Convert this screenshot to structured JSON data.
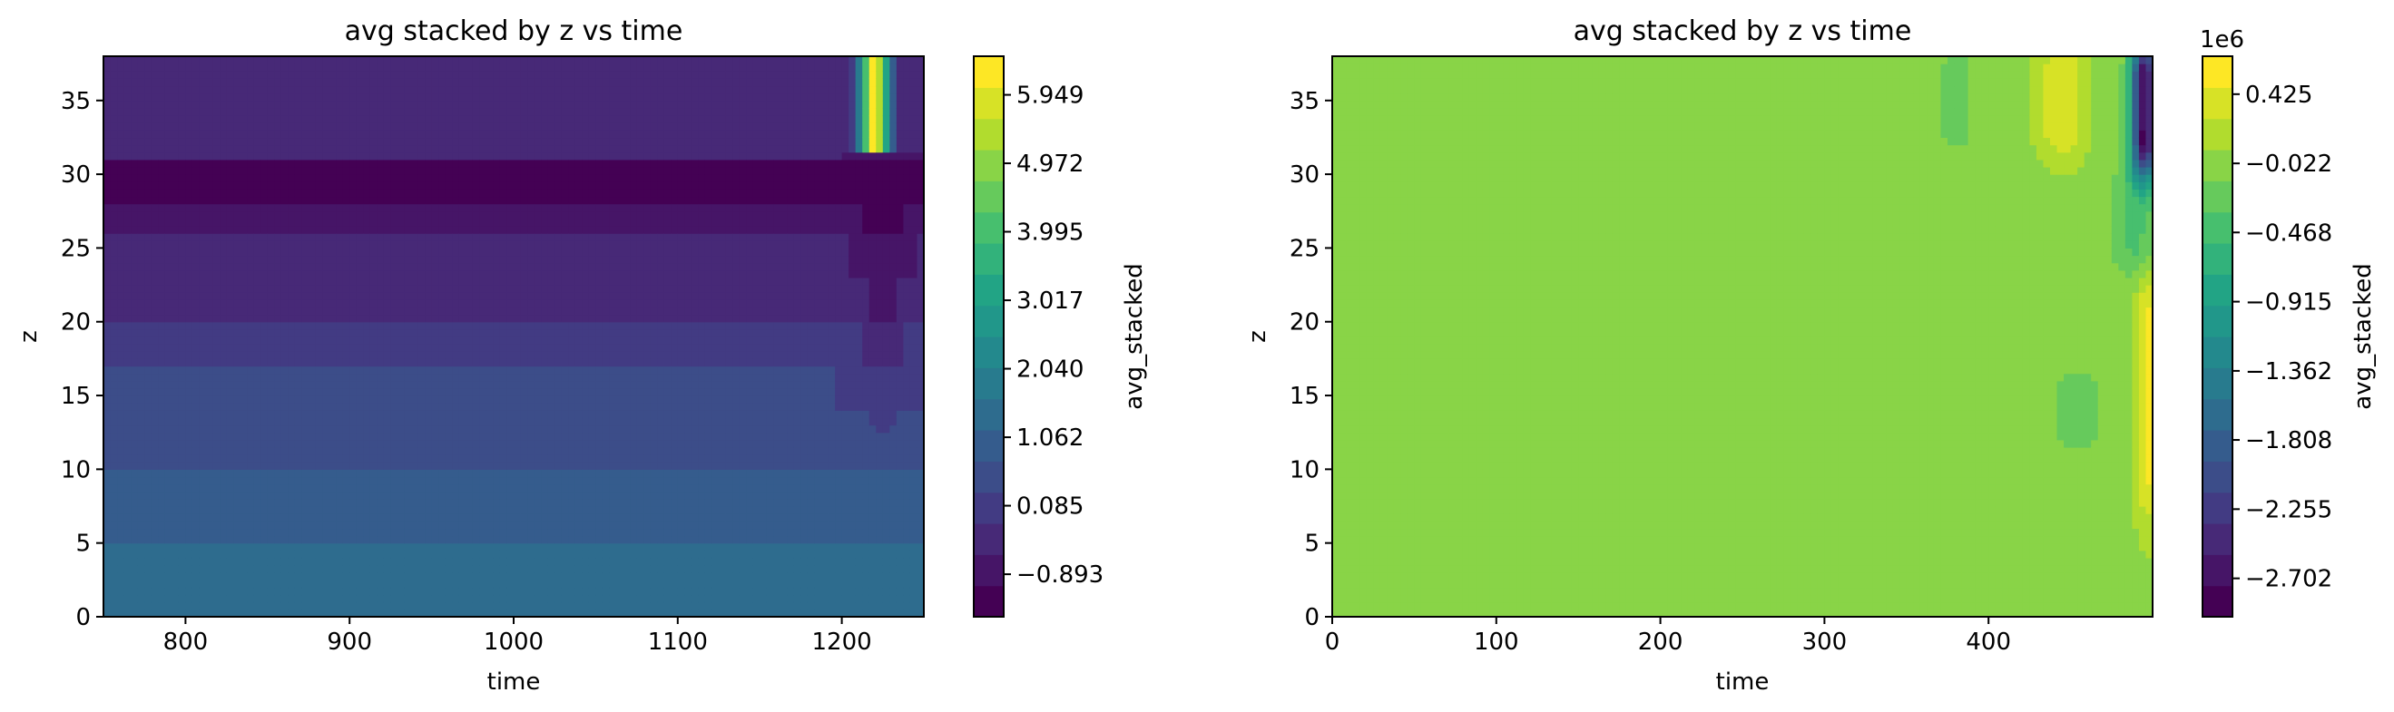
{
  "chart_data": [
    {
      "type": "heatmap",
      "subtype": "filled-contour",
      "title": "avg stacked by z vs time",
      "xlabel": "time",
      "ylabel": "z",
      "xlim": [
        750,
        1250
      ],
      "ylim": [
        0,
        38
      ],
      "x_ticks": [
        800,
        900,
        1000,
        1100,
        1200
      ],
      "y_ticks": [
        0,
        5,
        10,
        15,
        20,
        25,
        30,
        35
      ],
      "colormap": "viridis",
      "colorbar": {
        "label": "avg_stacked",
        "range": [
          -1.5,
          6.5
        ],
        "tick_values": [
          -0.893,
          0.085,
          1.062,
          2.04,
          3.017,
          3.995,
          4.972,
          5.949
        ],
        "tick_labels": [
          "−0.893",
          "0.085",
          "1.062",
          "2.040",
          "3.017",
          "3.995",
          "4.972",
          "5.949"
        ]
      },
      "field": {
        "description": "horizontal bands: value increases toward low z; dark band between z≈31 and z≈38 top region at ~-0.6; strong positive spike near time≈1220 at z>31",
        "band_values": [
          {
            "z": [
              0,
              2
            ],
            "value": 1.45
          },
          {
            "z": [
              2,
              5
            ],
            "value": 1.3
          },
          {
            "z": [
              5,
              8
            ],
            "value": 1.1
          },
          {
            "z": [
              8,
              10
            ],
            "value": 0.9
          },
          {
            "z": [
              10,
              12
            ],
            "value": 0.7
          },
          {
            "z": [
              12,
              14
            ],
            "value": 0.5
          },
          {
            "z": [
              14,
              17
            ],
            "value": 0.3
          },
          {
            "z": [
              17,
              20
            ],
            "value": 0.1
          },
          {
            "z": [
              20,
              23
            ],
            "value": -0.2
          },
          {
            "z": [
              23,
              26
            ],
            "value": -0.45
          },
          {
            "z": [
              26,
              28
            ],
            "value": -0.7
          },
          {
            "z": [
              28,
              31
            ],
            "value": -1.1
          },
          {
            "z": [
              31,
              38
            ],
            "value": -0.55
          }
        ],
        "hotspot": {
          "time": 1220,
          "z": [
            31.5,
            38
          ],
          "value": 6.2
        }
      }
    },
    {
      "type": "heatmap",
      "subtype": "filled-contour",
      "title": "avg stacked by z vs time",
      "xlabel": "time",
      "ylabel": "z",
      "xlim": [
        0,
        500
      ],
      "ylim": [
        0,
        38
      ],
      "x_ticks": [
        0,
        100,
        200,
        300,
        400
      ],
      "y_ticks": [
        0,
        5,
        10,
        15,
        20,
        25,
        30,
        35
      ],
      "colormap": "viridis",
      "colorbar": {
        "label": "avg_stacked",
        "offset_text": "1e6",
        "range": [
          -2.95,
          0.67
        ],
        "tick_values": [
          -2.702,
          -2.255,
          -1.808,
          -1.362,
          -0.915,
          -0.468,
          -0.022,
          0.425
        ],
        "tick_labels": [
          "−2.702",
          "−2.255",
          "−1.808",
          "−1.362",
          "−0.915",
          "−0.468",
          "−0.022",
          "0.425"
        ]
      },
      "field": {
        "background_value": 0.0,
        "features": [
          {
            "kind": "low",
            "time": 495,
            "z": [
              31,
              38
            ],
            "value": -2.8
          },
          {
            "kind": "high",
            "time": 445,
            "z": [
              32,
              38
            ],
            "value": 0.45
          },
          {
            "kind": "high",
            "time": 498,
            "z": [
              8,
              22
            ],
            "value": 0.55
          },
          {
            "kind": "slight-low",
            "time": 380,
            "z": [
              32,
              38
            ],
            "value": -0.2
          },
          {
            "kind": "slight-low",
            "time": 455,
            "z": [
              12,
              16
            ],
            "value": -0.3
          },
          {
            "kind": "slight-low",
            "time": 490,
            "z": [
              24,
              30
            ],
            "value": -0.4
          }
        ]
      }
    }
  ]
}
